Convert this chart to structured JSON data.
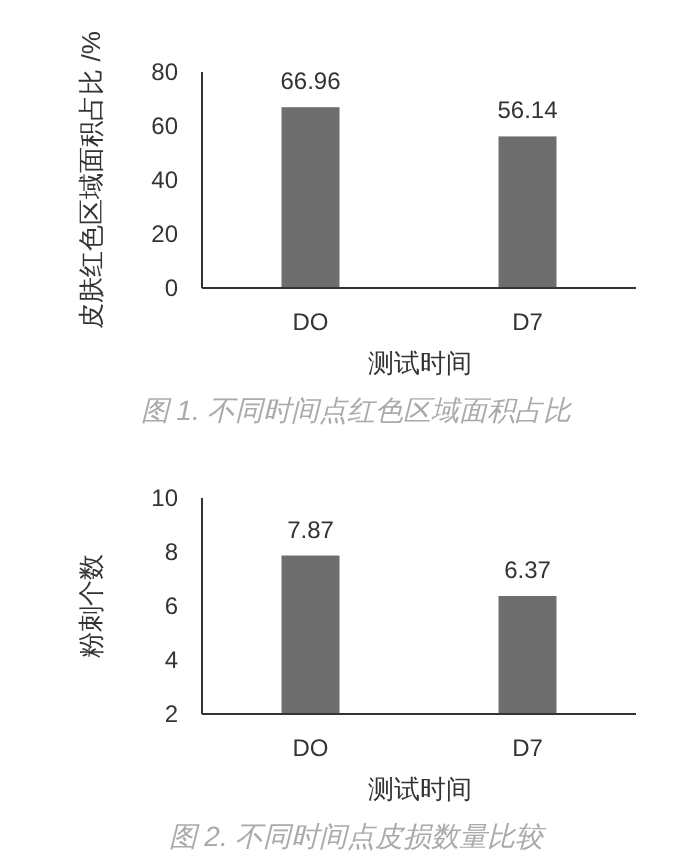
{
  "chart_data": [
    {
      "type": "bar",
      "categories": [
        "DO",
        "D7"
      ],
      "values": [
        66.96,
        56.14
      ],
      "color": "#6e6e6e",
      "ylim": [
        0,
        80
      ],
      "yticks": [
        0,
        20,
        40,
        60,
        80
      ],
      "ylabel": "皮肤红色区域面积占比 /%",
      "xlabel": "测试时间",
      "data_labels": true,
      "annotations": [
        "图 1. 不同时间点红色区域面积占比"
      ]
    },
    {
      "type": "bar",
      "categories": [
        "DO",
        "D7"
      ],
      "values": [
        7.87,
        6.37
      ],
      "color": "#6e6e6e",
      "ylim": [
        2,
        10
      ],
      "yticks": [
        2,
        4,
        6,
        8,
        10
      ],
      "ylabel": "粉刺个数",
      "xlabel": "测试时间",
      "data_labels": true,
      "annotations": [
        "图 2. 不同时间点皮损数量比较"
      ]
    }
  ]
}
